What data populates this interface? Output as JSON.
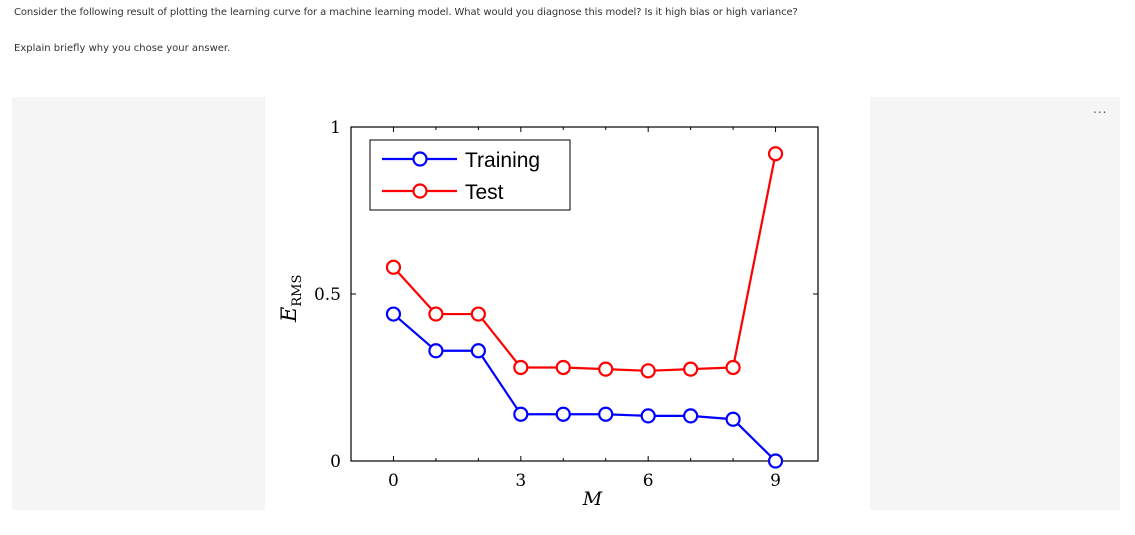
{
  "question": {
    "prompt": "Consider the following result of plotting the learning curve for a machine learning model. What would you diagnose this model? Is it high bias or high variance?",
    "instruction": "Explain briefly why you chose your answer."
  },
  "toolbar": {
    "more_label": "..."
  },
  "chart_data": {
    "type": "line",
    "xlabel": "M",
    "ylabel": "E_RMS",
    "xlim": [
      -1,
      10
    ],
    "ylim": [
      0,
      1
    ],
    "xticks": [
      "0",
      "3",
      "6",
      "9"
    ],
    "yticks": [
      "0",
      "0.5",
      "1"
    ],
    "legend_position": "top-left",
    "grid": false,
    "x": [
      0,
      1,
      2,
      3,
      4,
      5,
      6,
      7,
      8,
      9
    ],
    "series": [
      {
        "name": "Training",
        "color": "#0000ff",
        "values": [
          0.44,
          0.33,
          0.33,
          0.14,
          0.14,
          0.14,
          0.135,
          0.135,
          0.125,
          0.0
        ]
      },
      {
        "name": "Test",
        "color": "#ff0000",
        "values": [
          0.58,
          0.44,
          0.44,
          0.28,
          0.28,
          0.275,
          0.27,
          0.275,
          0.28,
          0.92
        ]
      }
    ]
  }
}
